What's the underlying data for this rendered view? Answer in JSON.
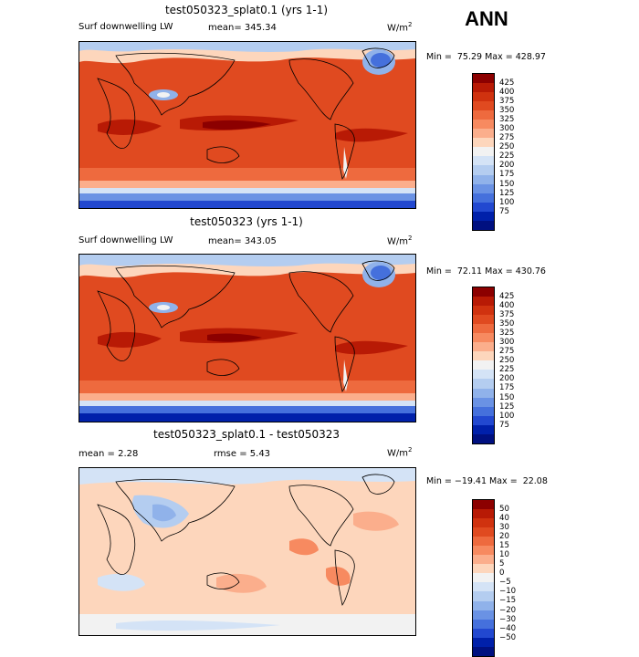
{
  "season": "ANN",
  "units": "W/m",
  "units_exp": "2",
  "panels": [
    {
      "title": "test050323_splat0.1 (yrs 1-1)",
      "field_label": "Surf downwelling LW",
      "stat": "mean= 345.34",
      "minmax": "Min =  75.29 Max = 428.97",
      "colorbar": {
        "labels": [
          "425",
          "400",
          "375",
          "350",
          "325",
          "300",
          "275",
          "250",
          "225",
          "200",
          "175",
          "150",
          "125",
          "100",
          "75"
        ],
        "colors": [
          "#8c0000",
          "#b81a05",
          "#d0320f",
          "#e04a20",
          "#ee6a3e",
          "#f78a60",
          "#fbae8c",
          "#fdd6bc",
          "#f2f2f2",
          "#d4e3f6",
          "#b4cdf0",
          "#90b2ea",
          "#6a92e4",
          "#4570dc",
          "#2248d0",
          "#0020aa",
          "#001080"
        ]
      }
    },
    {
      "title": "test050323 (yrs 1-1)",
      "field_label": "Surf downwelling LW",
      "stat": "mean= 343.05",
      "minmax": "Min =  72.11 Max = 430.76",
      "colorbar": {
        "labels": [
          "425",
          "400",
          "375",
          "350",
          "325",
          "300",
          "275",
          "250",
          "225",
          "200",
          "175",
          "150",
          "125",
          "100",
          "75"
        ],
        "colors": [
          "#8c0000",
          "#b81a05",
          "#d0320f",
          "#e04a20",
          "#ee6a3e",
          "#f78a60",
          "#fbae8c",
          "#fdd6bc",
          "#f2f2f2",
          "#d4e3f6",
          "#b4cdf0",
          "#90b2ea",
          "#6a92e4",
          "#4570dc",
          "#2248d0",
          "#0020aa",
          "#001080"
        ]
      }
    },
    {
      "title": "test050323_splat0.1 - test050323",
      "stat_left": "mean =    2.28",
      "stat_right": "rmse =   5.43",
      "minmax": "Min = −19.41 Max =  22.08",
      "colorbar": {
        "labels": [
          "50",
          "40",
          "30",
          "20",
          "15",
          "10",
          "5",
          "0",
          "−5",
          "−10",
          "−15",
          "−20",
          "−30",
          "−40",
          "−50"
        ],
        "colors": [
          "#8c0000",
          "#b81a05",
          "#d0320f",
          "#e04a20",
          "#ee6a3e",
          "#f78a60",
          "#fbae8c",
          "#fdd6bc",
          "#f2f2f2",
          "#d4e3f6",
          "#b4cdf0",
          "#90b2ea",
          "#6a92e4",
          "#4570dc",
          "#2248d0",
          "#0020aa",
          "#001080"
        ]
      }
    }
  ]
}
